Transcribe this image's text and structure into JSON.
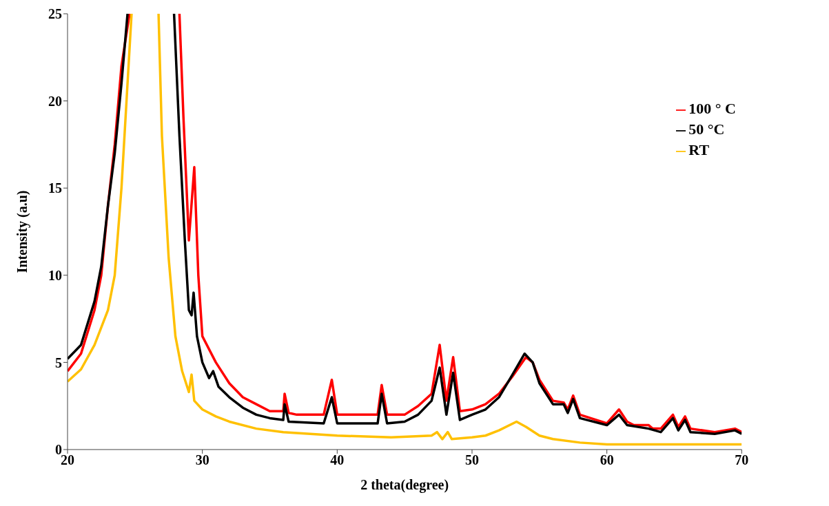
{
  "chart_data": {
    "type": "line",
    "xlabel": "2 theta(degree)",
    "ylabel": "Intensity (a.u)",
    "xlim": [
      20,
      70
    ],
    "xticks": [
      20,
      30,
      40,
      50,
      60,
      70
    ],
    "ylim": [
      0,
      25
    ],
    "yticks": [
      0,
      5,
      10,
      15,
      20,
      25
    ],
    "grid": false,
    "legend": "top right",
    "marker": "none",
    "line_style": "solid",
    "series": [
      {
        "name": "100 ° C",
        "color": "#ff0000",
        "x": [
          20,
          21,
          22,
          22.5,
          23,
          23.5,
          24,
          24.6,
          26,
          28.3,
          28.6,
          29.0,
          29.4,
          29.7,
          30,
          31,
          32,
          33,
          34,
          35,
          36,
          36.1,
          36.4,
          37,
          39,
          39.6,
          40,
          43,
          43.3,
          43.7,
          45,
          46,
          47,
          47.6,
          48.1,
          48.6,
          49.1,
          50,
          51,
          52,
          53,
          54,
          54.5,
          55,
          56,
          56.8,
          57.1,
          57.5,
          58,
          60,
          60.9,
          61.5,
          62,
          63.1,
          63.4,
          64,
          64.9,
          65.3,
          65.8,
          66.2,
          68,
          69.5,
          70
        ],
        "values": [
          4.5,
          5.5,
          8,
          10,
          14,
          17.5,
          22,
          25,
          null,
          25,
          19,
          12,
          16.2,
          10,
          6.5,
          5,
          3.8,
          3.0,
          2.6,
          2.2,
          2.2,
          3.2,
          2.1,
          2.0,
          2.0,
          4.0,
          2.0,
          2.0,
          3.7,
          2.0,
          2.0,
          2.5,
          3.2,
          6.0,
          2.8,
          5.3,
          2.2,
          2.3,
          2.6,
          3.2,
          4.2,
          5.3,
          5.0,
          4.0,
          2.8,
          2.7,
          2.3,
          3.1,
          2.0,
          1.5,
          2.3,
          1.6,
          1.4,
          1.4,
          1.2,
          1.2,
          2.0,
          1.3,
          1.9,
          1.2,
          1.0,
          1.2,
          1.0
        ]
      },
      {
        "name": "50 °C",
        "color": "#000000",
        "x": [
          20,
          21,
          22,
          22.5,
          23,
          23.5,
          24,
          24.45,
          26,
          27.9,
          28.3,
          28.7,
          29.0,
          29.2,
          29.35,
          29.6,
          30,
          30.5,
          30.8,
          31.2,
          32,
          33,
          34,
          35,
          36,
          36.1,
          36.4,
          39,
          39.6,
          40,
          43,
          43.3,
          43.7,
          45,
          46,
          47,
          47.6,
          48.1,
          48.6,
          49.1,
          50,
          51,
          52,
          53,
          53.9,
          54.5,
          55,
          56,
          56.8,
          57.1,
          57.5,
          58,
          60,
          60.9,
          61.5,
          63.1,
          64,
          64.9,
          65.3,
          65.8,
          66.2,
          68,
          69.5,
          70
        ],
        "values": [
          5.2,
          6.0,
          8.5,
          10.5,
          14,
          17,
          21,
          25,
          null,
          25,
          18,
          12,
          8,
          7.7,
          9.0,
          6.5,
          5,
          4.1,
          4.5,
          3.6,
          3.0,
          2.4,
          2.0,
          1.8,
          1.7,
          2.6,
          1.6,
          1.5,
          3.0,
          1.5,
          1.5,
          3.2,
          1.5,
          1.6,
          2.0,
          2.8,
          4.7,
          2.0,
          4.4,
          1.7,
          2.0,
          2.3,
          3.0,
          4.3,
          5.5,
          5.0,
          3.8,
          2.6,
          2.6,
          2.1,
          2.9,
          1.8,
          1.4,
          2.0,
          1.4,
          1.2,
          1.0,
          1.8,
          1.1,
          1.7,
          1.0,
          0.9,
          1.1,
          0.9
        ]
      },
      {
        "name": "RT",
        "color": "#ffc000",
        "x": [
          20,
          21,
          22,
          23,
          23.5,
          24,
          24.3,
          24.75,
          25.5,
          26.75,
          27,
          27.5,
          28,
          28.5,
          29.0,
          29.2,
          29.4,
          30,
          31,
          32,
          34,
          36,
          40,
          44,
          47,
          47.4,
          47.8,
          48.2,
          48.5,
          50,
          51,
          52,
          53.3,
          54,
          55,
          56,
          58,
          60,
          65,
          70
        ],
        "values": [
          3.9,
          4.6,
          6,
          8,
          10,
          15,
          19,
          25,
          null,
          25,
          18,
          11,
          6.5,
          4.5,
          3.3,
          4.3,
          2.8,
          2.3,
          1.9,
          1.6,
          1.2,
          1.0,
          0.8,
          0.7,
          0.8,
          1.0,
          0.6,
          1.0,
          0.6,
          0.7,
          0.8,
          1.1,
          1.6,
          1.3,
          0.8,
          0.6,
          0.4,
          0.3,
          0.3,
          0.3
        ]
      }
    ]
  }
}
